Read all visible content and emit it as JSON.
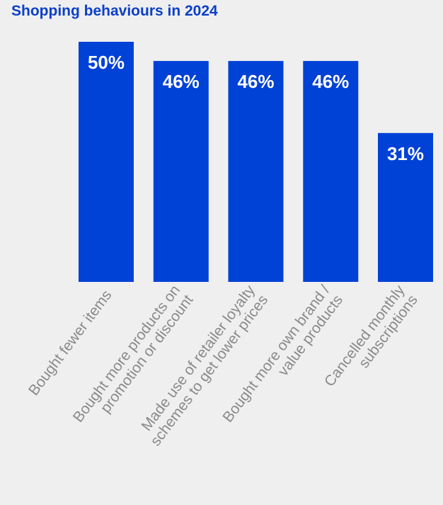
{
  "chart_data": {
    "type": "bar",
    "title": "Shopping behaviours in 2024",
    "categories": [
      [
        "Bought fewer items"
      ],
      [
        "Bought more products on",
        "promotion or discount"
      ],
      [
        "Made use of retailer loyalty",
        "schemes to get lower prices"
      ],
      [
        "Bought more own brand /",
        "value products"
      ],
      [
        "Cancelled monthly",
        "subscriptions"
      ]
    ],
    "values": [
      50,
      46,
      46,
      46,
      31
    ],
    "value_labels": [
      "50%",
      "46%",
      "46%",
      "46%",
      "31%"
    ],
    "ylim": [
      0,
      50
    ],
    "grid": false,
    "legend": "none",
    "colors": {
      "bar": "#0041d6",
      "title": "#0a3fc9",
      "value_label": "#ffffff",
      "category_label": "#8a8a8a",
      "background": "#efefef"
    }
  }
}
